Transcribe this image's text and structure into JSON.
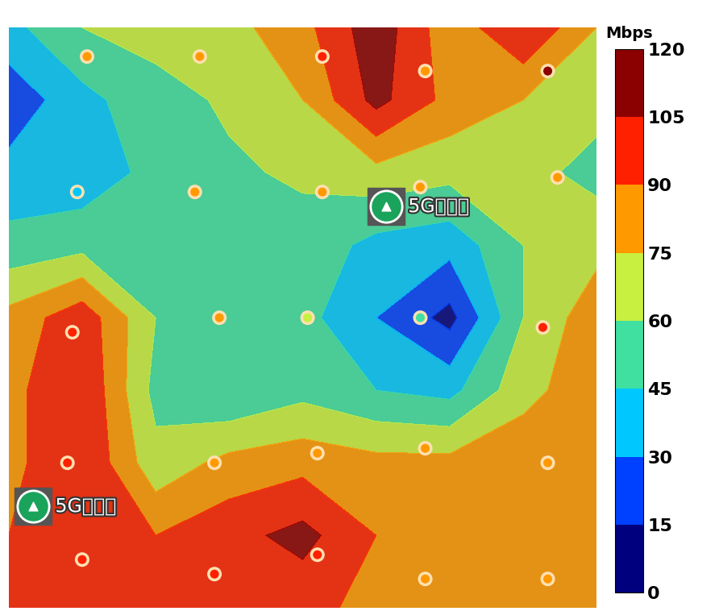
{
  "chart_data": {
    "type": "heatmap",
    "tick_labels": false,
    "xlim": [
      0,
      12
    ],
    "ylim": [
      12,
      0
    ],
    "x": [
      0,
      1.5,
      3,
      4.5,
      6,
      7.5,
      9,
      10.5,
      12
    ],
    "y": [
      0,
      1.5,
      3,
      4.5,
      6,
      7.5,
      9,
      10.5,
      12
    ],
    "cells": [
      [
        40,
        60,
        65,
        70,
        85,
        115,
        80,
        105,
        75
      ],
      [
        20,
        40,
        55,
        62,
        75,
        110,
        85,
        75,
        65
      ],
      [
        35,
        35,
        50,
        58,
        62,
        70,
        65,
        65,
        55
      ],
      [
        50,
        55,
        50,
        55,
        55,
        40,
        35,
        60,
        70
      ],
      [
        80,
        100,
        60,
        58,
        50,
        30,
        10,
        60,
        85
      ],
      [
        85,
        105,
        55,
        45,
        55,
        45,
        40,
        70,
        85
      ],
      [
        85,
        105,
        65,
        80,
        85,
        80,
        80,
        85,
        80
      ],
      [
        90,
        105,
        90,
        100,
        110,
        90,
        85,
        85,
        80
      ],
      [
        90,
        105,
        100,
        105,
        95,
        85,
        85,
        80,
        80
      ]
    ],
    "points": [
      {
        "x": 1.6,
        "y": 0.6,
        "value": 80
      },
      {
        "x": 3.9,
        "y": 0.6,
        "value": 80
      },
      {
        "x": 6.4,
        "y": 0.6,
        "value": 95
      },
      {
        "x": 8.5,
        "y": 0.9,
        "value": 85
      },
      {
        "x": 11.0,
        "y": 0.9,
        "value": 105
      },
      {
        "x": 1.4,
        "y": 3.4,
        "value": 35
      },
      {
        "x": 3.8,
        "y": 3.4,
        "value": 75
      },
      {
        "x": 6.4,
        "y": 3.4,
        "value": 80
      },
      {
        "x": 8.4,
        "y": 3.3,
        "value": 80
      },
      {
        "x": 11.2,
        "y": 3.1,
        "value": 80
      },
      {
        "x": 1.3,
        "y": 6.3,
        "value": 100
      },
      {
        "x": 4.3,
        "y": 6.0,
        "value": 80
      },
      {
        "x": 6.1,
        "y": 6.0,
        "value": 70
      },
      {
        "x": 8.4,
        "y": 6.0,
        "value": 55
      },
      {
        "x": 10.9,
        "y": 6.2,
        "value": 90
      },
      {
        "x": 1.2,
        "y": 9.0,
        "value": 100
      },
      {
        "x": 4.2,
        "y": 9.0,
        "value": 80
      },
      {
        "x": 6.3,
        "y": 8.8,
        "value": 85
      },
      {
        "x": 8.5,
        "y": 8.7,
        "value": 80
      },
      {
        "x": 11.0,
        "y": 9.0,
        "value": 85
      },
      {
        "x": 1.5,
        "y": 11.0,
        "value": 100
      },
      {
        "x": 4.2,
        "y": 11.3,
        "value": 100
      },
      {
        "x": 6.3,
        "y": 10.9,
        "value": 100
      },
      {
        "x": 8.5,
        "y": 11.4,
        "value": 85
      },
      {
        "x": 11.0,
        "y": 11.4,
        "value": 80
      }
    ],
    "stations": [
      {
        "label": "5G基地局",
        "x": 7.7,
        "y": 3.7
      },
      {
        "label": "5G基地局",
        "x": 0.5,
        "y": 9.9
      }
    ],
    "colorbar": {
      "label": "Mbps",
      "range": [
        0,
        120
      ],
      "ticks": [
        0,
        15,
        30,
        45,
        60,
        75,
        90,
        105,
        120
      ],
      "colors": [
        "#00007f",
        "#0040ff",
        "#00c8ff",
        "#40e0a0",
        "#c8f040",
        "#ff9900",
        "#ff2000",
        "#8b0000"
      ]
    }
  }
}
